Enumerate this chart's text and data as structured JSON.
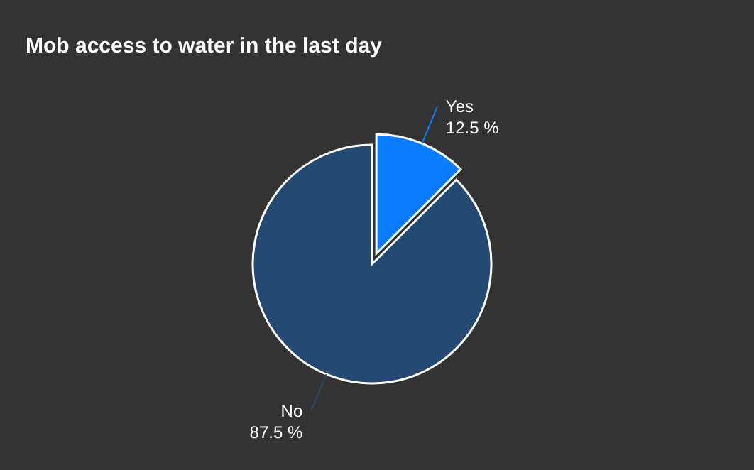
{
  "chart_data": {
    "type": "pie",
    "title": "Mob access to water in the last day",
    "categories": [
      "Yes",
      "No"
    ],
    "values": [
      12.5,
      87.5
    ],
    "colors": [
      "#0a7cff",
      "#244a73"
    ],
    "value_labels": [
      "12.5 %",
      "87.5 %"
    ]
  }
}
